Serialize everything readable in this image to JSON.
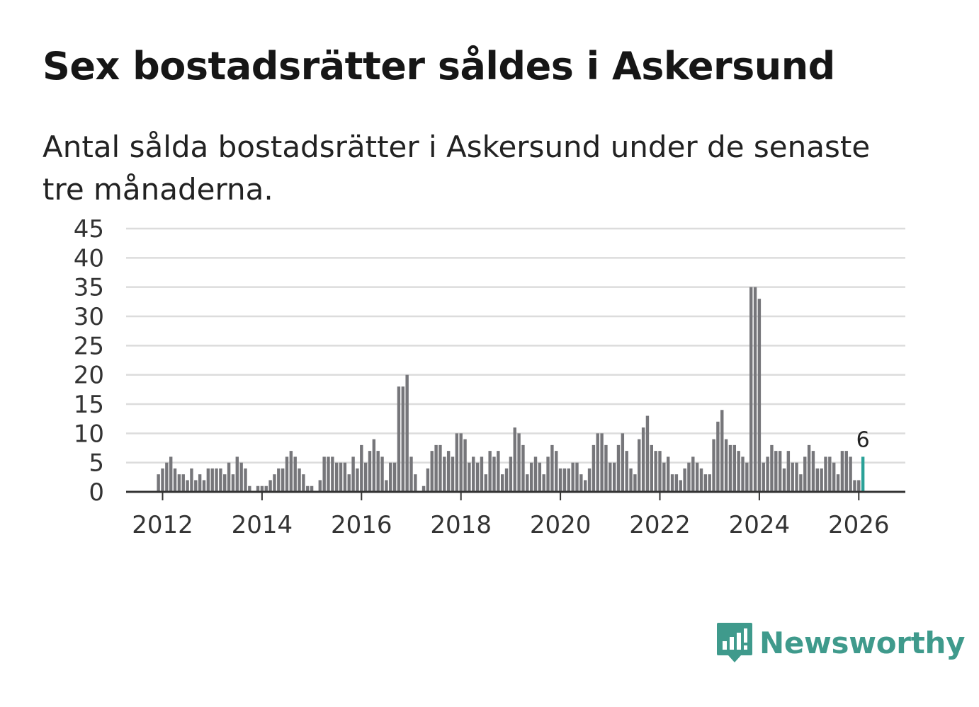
{
  "title": "Sex bostadsrätter såldes i Askersund",
  "subtitle": "Antal sålda bostadsrätter i Askersund under de senaste tre månaderna.",
  "logo": {
    "text": "Newsworthy",
    "icon": "newsworthy-logo-icon"
  },
  "colors": {
    "bar": "#76767a",
    "highlight": "#2aa198",
    "grid": "#dcdcdc",
    "axis": "#333333"
  },
  "chart_data": {
    "type": "bar",
    "title": "Antal sålda bostadsrätter",
    "xlabel": "",
    "ylabel": "",
    "ylim": [
      0,
      45
    ],
    "y_ticks": [
      0,
      5,
      10,
      15,
      20,
      25,
      30,
      35,
      40,
      45
    ],
    "x_tick_years": [
      "2012",
      "2014",
      "2016",
      "2018",
      "2020",
      "2022",
      "2024",
      "2026"
    ],
    "start": "2011-12",
    "end": "2026-03",
    "highlight_label": "6",
    "values": [
      3,
      4,
      5,
      6,
      4,
      3,
      3,
      2,
      4,
      2,
      3,
      2,
      4,
      4,
      4,
      4,
      3,
      5,
      3,
      6,
      5,
      4,
      1,
      0,
      1,
      1,
      1,
      2,
      3,
      4,
      4,
      6,
      7,
      6,
      4,
      3,
      1,
      1,
      0,
      2,
      6,
      6,
      6,
      5,
      5,
      5,
      3,
      6,
      4,
      8,
      5,
      7,
      9,
      7,
      6,
      2,
      5,
      5,
      18,
      18,
      20,
      6,
      3,
      0,
      1,
      4,
      7,
      8,
      8,
      6,
      7,
      6,
      10,
      10,
      9,
      5,
      6,
      5,
      6,
      3,
      7,
      6,
      7,
      3,
      4,
      6,
      11,
      10,
      8,
      3,
      5,
      6,
      5,
      3,
      6,
      8,
      7,
      4,
      4,
      4,
      5,
      5,
      3,
      2,
      4,
      8,
      10,
      10,
      8,
      5,
      5,
      8,
      10,
      7,
      4,
      3,
      9,
      11,
      13,
      8,
      7,
      7,
      5,
      6,
      3,
      3,
      2,
      4,
      5,
      6,
      5,
      4,
      3,
      3,
      9,
      12,
      14,
      9,
      8,
      8,
      7,
      6,
      5,
      35,
      35,
      33,
      5,
      6,
      8,
      7,
      7,
      4,
      7,
      5,
      5,
      3,
      6,
      8,
      7,
      4,
      4,
      6,
      6,
      5,
      3,
      7,
      7,
      6,
      2,
      2,
      6
    ]
  }
}
